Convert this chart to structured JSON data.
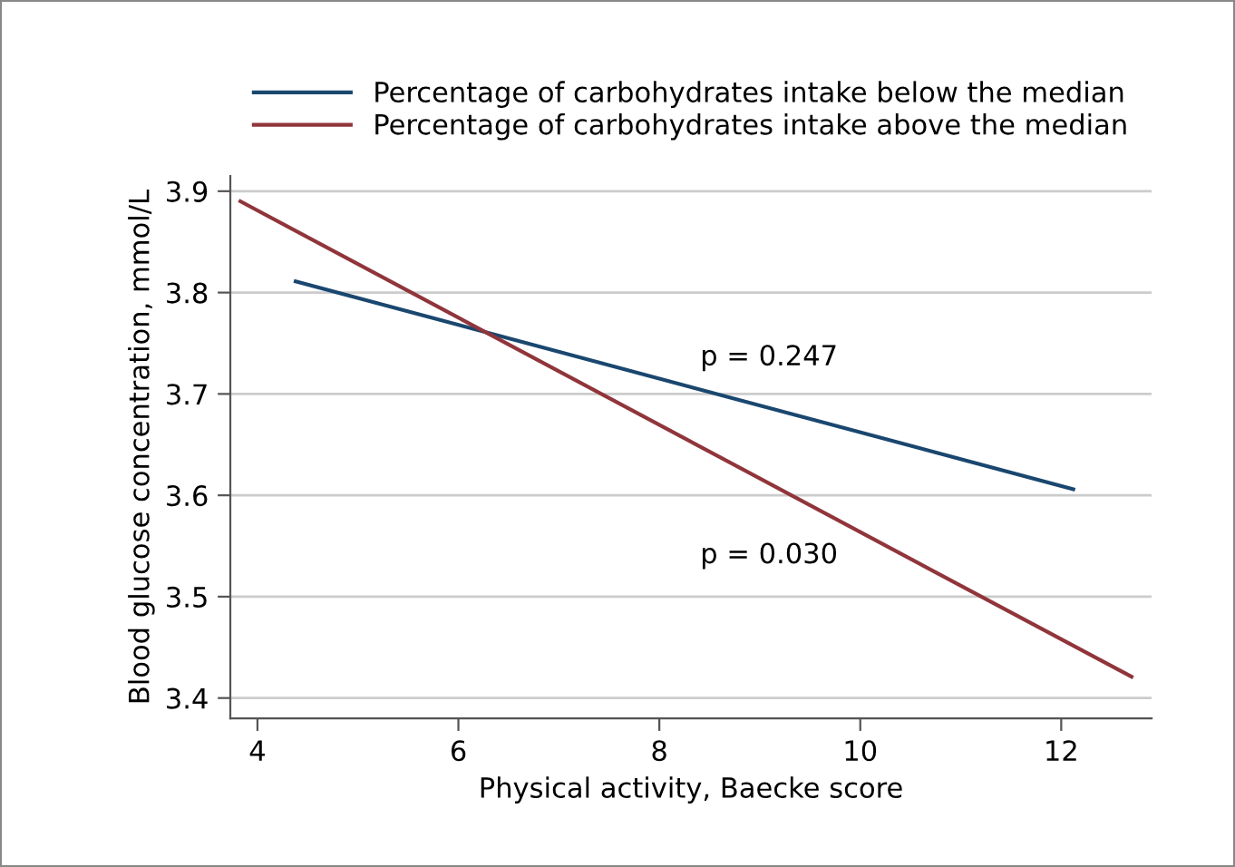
{
  "chart_data": {
    "type": "line",
    "xlabel": "Physical activity, Baecke score",
    "ylabel": "Blood glucose concentration, mmol/L",
    "series": [
      {
        "name": "Percentage of carbohydrates intake below the median",
        "color": "#1a476f",
        "x": [
          4.38,
          12.12
        ],
        "values": [
          3.811,
          3.606
        ]
      },
      {
        "name": "Percentage of carbohydrates intake above the median",
        "color": "#90353b",
        "x": [
          3.83,
          12.7
        ],
        "values": [
          3.89,
          3.421
        ]
      }
    ],
    "annotations": [
      "p = 0.247",
      "p = 0.030"
    ],
    "xlim": [
      3.73,
      12.9
    ],
    "ylim": [
      3.38,
      3.915
    ],
    "xticks": [
      4,
      6,
      8,
      10,
      12
    ],
    "yticks": [
      3.4,
      3.5,
      3.6,
      3.7,
      3.8,
      3.9
    ],
    "grid": "y",
    "legend": "top",
    "marker": "none",
    "line_style": "solid"
  }
}
